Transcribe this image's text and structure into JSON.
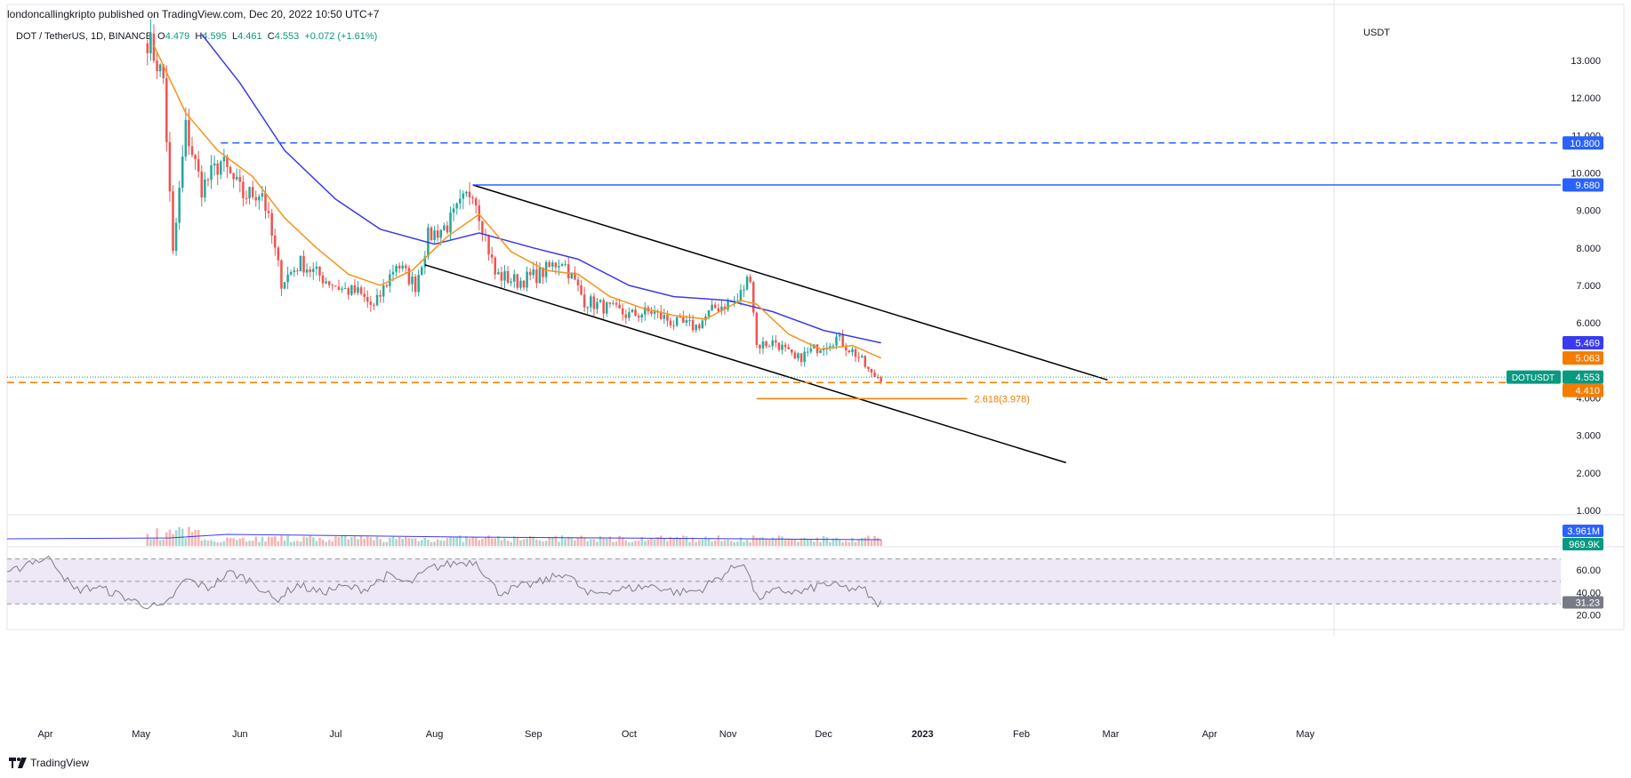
{
  "header": {
    "publish_text": "londoncallingkripto published on TradingView.com, Dec 20, 2022 10:50 UTC+7",
    "symbol": "DOT / TetherUS, 1D, BINANCE",
    "o_label": "O",
    "o_value": "4.479",
    "h_label": "H",
    "h_value": "4.595",
    "l_label": "L",
    "l_value": "4.461",
    "c_label": "C",
    "c_value": "4.553",
    "change": "+0.072 (+1.61%)"
  },
  "footer": {
    "brand": "TradingView",
    "logo_icon": "tradingview-logo-icon"
  },
  "colors": {
    "up": "#26a69a",
    "down": "#ef5350",
    "ema_short": "#f7931a",
    "ema_long": "#3a3af0",
    "level_blue": "#2962ff",
    "level_orange": "#f57c00",
    "channel": "#000000",
    "rsi_band": "#ede7f6",
    "rsi_line": "#7e7e7e"
  },
  "chart_data": {
    "type": "candlestick",
    "currency": "USDT",
    "ylim": [
      1.0,
      13.7
    ],
    "y_ticks": [
      "13.000",
      "12.000",
      "11.000",
      "10.000",
      "9.000",
      "8.000",
      "7.000",
      "6.000",
      "5.000",
      "4.000",
      "3.000",
      "2.000",
      "1.000"
    ],
    "y_tick_values": [
      13,
      12,
      11,
      10,
      9,
      8,
      7,
      6,
      5,
      4,
      3,
      2,
      1
    ],
    "x_tick_labels": [
      "Apr",
      "May",
      "Jun",
      "Jul",
      "Aug",
      "Sep",
      "Oct",
      "Nov",
      "Dec",
      "2023",
      "Feb",
      "Mar",
      "Apr",
      "May"
    ],
    "x_tick_dates": [
      "2022-04-01",
      "2022-05-01",
      "2022-06-01",
      "2022-07-01",
      "2022-08-01",
      "2022-09-01",
      "2022-10-01",
      "2022-11-01",
      "2022-12-01",
      "2023-01-01",
      "2023-02-01",
      "2023-03-01",
      "2023-04-01",
      "2023-05-01"
    ],
    "xlim": [
      "2022-03-20",
      "2023-05-10"
    ],
    "price_anchors": [
      [
        "2022-05-03",
        13.6
      ],
      [
        "2022-05-08",
        12.5
      ],
      [
        "2022-05-11",
        7.8
      ],
      [
        "2022-05-15",
        11.2
      ],
      [
        "2022-05-20",
        9.6
      ],
      [
        "2022-05-26",
        10.3
      ],
      [
        "2022-06-02",
        9.4
      ],
      [
        "2022-06-08",
        9.5
      ],
      [
        "2022-06-14",
        7.1
      ],
      [
        "2022-06-20",
        7.6
      ],
      [
        "2022-06-27",
        7.2
      ],
      [
        "2022-07-03",
        6.9
      ],
      [
        "2022-07-08",
        6.8
      ],
      [
        "2022-07-13",
        6.4
      ],
      [
        "2022-07-20",
        7.6
      ],
      [
        "2022-07-26",
        7.0
      ],
      [
        "2022-07-30",
        8.3
      ],
      [
        "2022-08-05",
        8.6
      ],
      [
        "2022-08-13",
        9.6
      ],
      [
        "2022-08-20",
        7.3
      ],
      [
        "2022-08-27",
        7.1
      ],
      [
        "2022-09-03",
        7.3
      ],
      [
        "2022-09-10",
        7.7
      ],
      [
        "2022-09-17",
        6.6
      ],
      [
        "2022-09-24",
        6.4
      ],
      [
        "2022-10-01",
        6.2
      ],
      [
        "2022-10-08",
        6.3
      ],
      [
        "2022-10-15",
        6.0
      ],
      [
        "2022-10-22",
        5.9
      ],
      [
        "2022-10-28",
        6.4
      ],
      [
        "2022-11-04",
        6.6
      ],
      [
        "2022-11-08",
        7.3
      ],
      [
        "2022-11-10",
        5.4
      ],
      [
        "2022-11-16",
        5.5
      ],
      [
        "2022-11-22",
        5.0
      ],
      [
        "2022-11-28",
        5.3
      ],
      [
        "2022-12-05",
        5.6
      ],
      [
        "2022-12-12",
        5.1
      ],
      [
        "2022-12-16",
        4.6
      ],
      [
        "2022-12-19",
        4.55
      ]
    ],
    "ema_short_points": [
      [
        "2022-05-05",
        13.4
      ],
      [
        "2022-05-15",
        11.6
      ],
      [
        "2022-05-25",
        10.6
      ],
      [
        "2022-06-05",
        9.9
      ],
      [
        "2022-06-15",
        8.8
      ],
      [
        "2022-06-25",
        8.0
      ],
      [
        "2022-07-05",
        7.3
      ],
      [
        "2022-07-15",
        7.0
      ],
      [
        "2022-07-25",
        7.4
      ],
      [
        "2022-08-05",
        8.3
      ],
      [
        "2022-08-15",
        8.9
      ],
      [
        "2022-08-25",
        7.9
      ],
      [
        "2022-09-05",
        7.4
      ],
      [
        "2022-09-15",
        7.3
      ],
      [
        "2022-09-25",
        6.7
      ],
      [
        "2022-10-05",
        6.4
      ],
      [
        "2022-10-15",
        6.2
      ],
      [
        "2022-10-25",
        6.1
      ],
      [
        "2022-11-05",
        6.6
      ],
      [
        "2022-11-10",
        6.5
      ],
      [
        "2022-11-20",
        5.7
      ],
      [
        "2022-11-30",
        5.3
      ],
      [
        "2022-12-10",
        5.4
      ],
      [
        "2022-12-19",
        5.063
      ]
    ],
    "ema_long_points": [
      [
        "2022-05-20",
        13.7
      ],
      [
        "2022-06-01",
        12.4
      ],
      [
        "2022-06-15",
        10.6
      ],
      [
        "2022-07-01",
        9.3
      ],
      [
        "2022-07-15",
        8.5
      ],
      [
        "2022-08-01",
        8.1
      ],
      [
        "2022-08-15",
        8.4
      ],
      [
        "2022-09-01",
        8.0
      ],
      [
        "2022-09-15",
        7.7
      ],
      [
        "2022-10-01",
        7.0
      ],
      [
        "2022-10-15",
        6.7
      ],
      [
        "2022-11-01",
        6.6
      ],
      [
        "2022-11-15",
        6.3
      ],
      [
        "2022-12-01",
        5.8
      ],
      [
        "2022-12-19",
        5.469
      ]
    ],
    "channel_upper": [
      [
        "2022-08-13",
        9.68
      ],
      [
        "2023-02-28",
        4.48
      ]
    ],
    "channel_lower": [
      [
        "2022-07-29",
        7.55
      ],
      [
        "2023-02-15",
        2.27
      ]
    ],
    "hlines": [
      {
        "name": "10.800",
        "value": 10.8,
        "from": "2022-05-26",
        "style": "dashed",
        "color": "#2962ff",
        "label": "10.800"
      },
      {
        "name": "9.680",
        "value": 9.68,
        "from": "2022-08-13",
        "style": "solid",
        "color": "#2962ff",
        "label": "9.680"
      },
      {
        "name": "4.410",
        "value": 4.41,
        "from": "2022-03-20",
        "style": "dashed",
        "color": "#f57c00",
        "label": "4.410"
      }
    ],
    "fib_line": {
      "value": 3.978,
      "from": "2022-11-10",
      "to": "2023-01-15",
      "label": "2.618(3.978)"
    },
    "price_labels": [
      {
        "text": "5.469",
        "value": 5.469,
        "color": "#3a3af0"
      },
      {
        "text": "5.063",
        "value": 5.063,
        "color": "#f57c00"
      },
      {
        "text": "4.553",
        "value": 4.553,
        "color": "#089981",
        "tag": "DOTUSDT"
      },
      {
        "text": "4.410",
        "value": 4.41,
        "color": "#f57c00"
      }
    ],
    "volume": {
      "current": "3.961M",
      "ma": "969.9K"
    },
    "rsi": {
      "y_ticks": [
        "60.00",
        "40.00",
        "20.00"
      ],
      "y_tick_values": [
        60,
        40,
        20
      ],
      "ylim": [
        15,
        80
      ],
      "band": [
        30,
        70
      ],
      "current": "31.23",
      "current_value": 31.23,
      "points": [
        [
          "2022-03-20",
          55
        ],
        [
          "2022-03-27",
          68
        ],
        [
          "2022-04-03",
          70
        ],
        [
          "2022-04-10",
          42
        ],
        [
          "2022-04-17",
          45
        ],
        [
          "2022-04-24",
          38
        ],
        [
          "2022-05-01",
          30
        ],
        [
          "2022-05-08",
          26
        ],
        [
          "2022-05-15",
          52
        ],
        [
          "2022-05-22",
          44
        ],
        [
          "2022-05-29",
          58
        ],
        [
          "2022-06-05",
          50
        ],
        [
          "2022-06-12",
          33
        ],
        [
          "2022-06-19",
          47
        ],
        [
          "2022-06-26",
          40
        ],
        [
          "2022-07-03",
          45
        ],
        [
          "2022-07-10",
          43
        ],
        [
          "2022-07-17",
          55
        ],
        [
          "2022-07-24",
          48
        ],
        [
          "2022-07-31",
          62
        ],
        [
          "2022-08-07",
          66
        ],
        [
          "2022-08-14",
          68
        ],
        [
          "2022-08-21",
          40
        ],
        [
          "2022-08-28",
          45
        ],
        [
          "2022-09-04",
          50
        ],
        [
          "2022-09-11",
          58
        ],
        [
          "2022-09-18",
          38
        ],
        [
          "2022-09-25",
          42
        ],
        [
          "2022-10-02",
          44
        ],
        [
          "2022-10-09",
          46
        ],
        [
          "2022-10-16",
          40
        ],
        [
          "2022-10-23",
          42
        ],
        [
          "2022-10-30",
          55
        ],
        [
          "2022-11-06",
          68
        ],
        [
          "2022-11-10",
          35
        ],
        [
          "2022-11-17",
          42
        ],
        [
          "2022-11-24",
          40
        ],
        [
          "2022-12-01",
          48
        ],
        [
          "2022-12-08",
          44
        ],
        [
          "2022-12-14",
          42
        ],
        [
          "2022-12-17",
          30
        ],
        [
          "2022-12-19",
          31.23
        ]
      ]
    }
  }
}
